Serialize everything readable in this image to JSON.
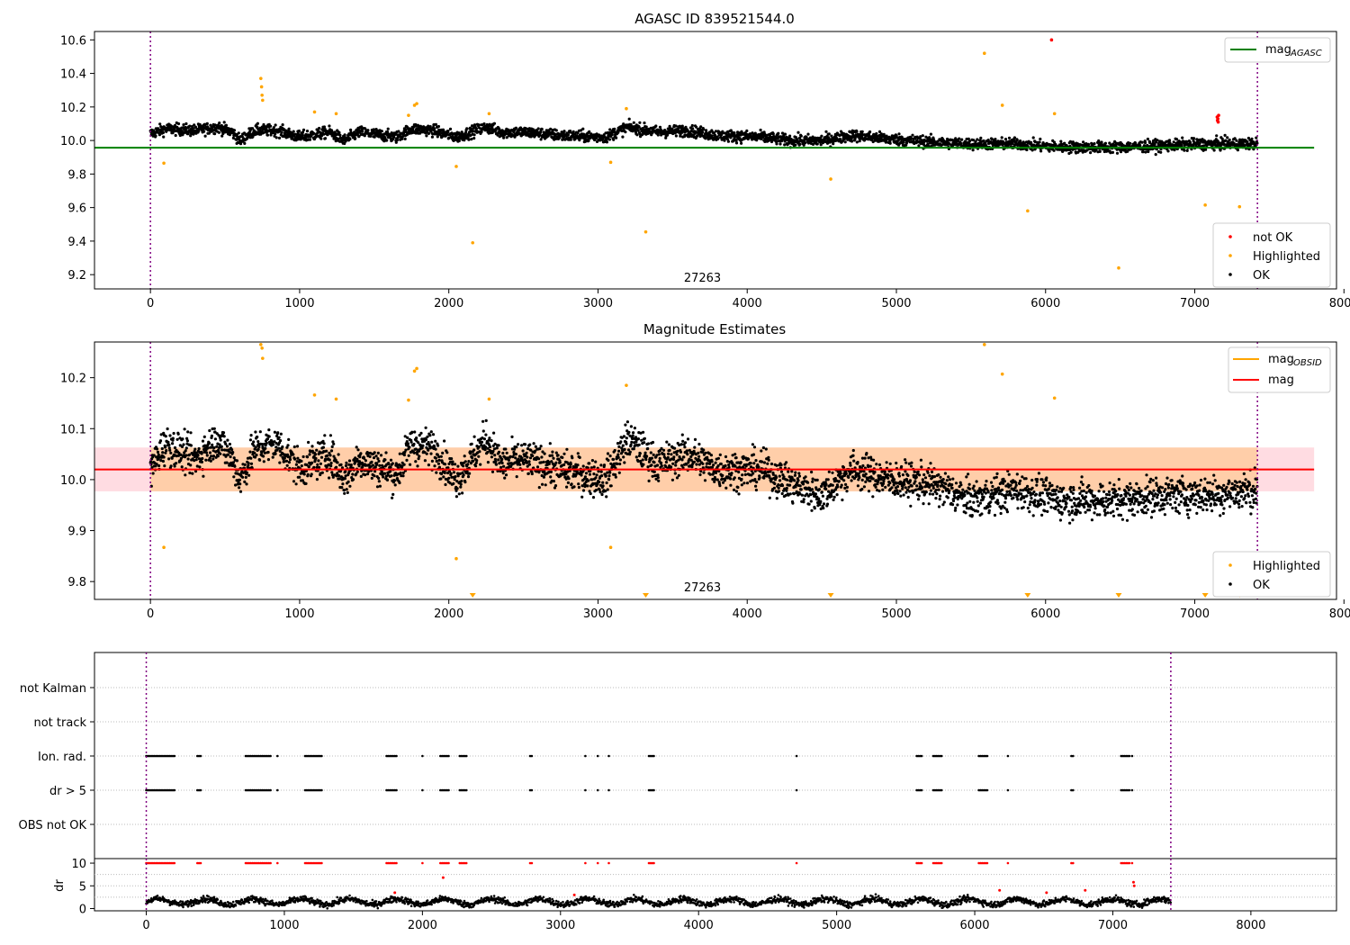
{
  "chart_data": [
    {
      "type": "scatter",
      "title": "AGASC ID 839521544.0",
      "xlim": [
        -375,
        7950
      ],
      "ylim": [
        9.115,
        10.65
      ],
      "xticks": [
        0,
        1000,
        2000,
        3000,
        4000,
        5000,
        6000,
        7000,
        8000
      ],
      "yticks": [
        9.2,
        9.4,
        9.6,
        9.8,
        10.0,
        10.2,
        10.4,
        10.6
      ],
      "ytick_labels": [
        "9.2",
        "9.4",
        "9.6",
        "9.8",
        "10.0",
        "10.2",
        "10.4",
        "10.6"
      ],
      "annotation": {
        "text": "27263",
        "x": 3700,
        "y": 9.13
      },
      "vlines": [
        0,
        7420
      ],
      "lines": [
        {
          "name": "mag_AGASC",
          "y": 9.957,
          "x": [
            -375,
            7800
          ],
          "color": "#008000"
        }
      ],
      "legend_lines": {
        "label": "mag",
        "sub": "AGASC",
        "position": "upper right"
      },
      "legend_points": {
        "position": "lower right",
        "items": [
          {
            "label": "not OK",
            "color": "#ff0000"
          },
          {
            "label": "Highlighted",
            "color": "#ffa500"
          },
          {
            "label": "OK",
            "color": "#000000"
          }
        ]
      },
      "ok_trend": [
        [
          0,
          10.04
        ],
        [
          100,
          10.07
        ],
        [
          300,
          10.06
        ],
        [
          450,
          10.08
        ],
        [
          550,
          10.05
        ],
        [
          600,
          10.0
        ],
        [
          700,
          10.06
        ],
        [
          850,
          10.06
        ],
        [
          1000,
          10.02
        ],
        [
          1200,
          10.05
        ],
        [
          1300,
          10.0
        ],
        [
          1400,
          10.05
        ],
        [
          1650,
          10.02
        ],
        [
          1750,
          10.07
        ],
        [
          1900,
          10.06
        ],
        [
          2050,
          10.02
        ],
        [
          2250,
          10.08
        ],
        [
          2350,
          10.05
        ],
        [
          2500,
          10.05
        ],
        [
          2750,
          10.03
        ],
        [
          3050,
          10.02
        ],
        [
          3200,
          10.08
        ],
        [
          3400,
          10.05
        ],
        [
          3600,
          10.06
        ],
        [
          3800,
          10.03
        ],
        [
          4100,
          10.02
        ],
        [
          4300,
          10.0
        ],
        [
          4500,
          10.0
        ],
        [
          4700,
          10.03
        ],
        [
          4950,
          10.01
        ],
        [
          5250,
          9.99
        ],
        [
          5500,
          9.98
        ],
        [
          5800,
          9.98
        ],
        [
          6100,
          9.96
        ],
        [
          6500,
          9.96
        ],
        [
          6800,
          9.97
        ],
        [
          7100,
          9.98
        ],
        [
          7420,
          9.98
        ]
      ],
      "highlighted": [
        [
          90,
          9.865
        ],
        [
          740,
          10.37
        ],
        [
          745,
          10.32
        ],
        [
          748,
          10.27
        ],
        [
          752,
          10.24
        ],
        [
          1100,
          10.17
        ],
        [
          1245,
          10.16
        ],
        [
          1730,
          10.15
        ],
        [
          1770,
          10.21
        ],
        [
          1785,
          10.22
        ],
        [
          2050,
          9.845
        ],
        [
          2160,
          9.39
        ],
        [
          2270,
          10.16
        ],
        [
          3085,
          9.87
        ],
        [
          3190,
          10.19
        ],
        [
          3320,
          9.455
        ],
        [
          4560,
          9.77
        ],
        [
          5590,
          10.52
        ],
        [
          5710,
          10.21
        ],
        [
          5880,
          9.58
        ],
        [
          6060,
          10.16
        ],
        [
          6490,
          9.24
        ],
        [
          7070,
          9.615
        ],
        [
          7300,
          9.605
        ]
      ],
      "not_ok": [
        [
          6040,
          10.6
        ],
        [
          7150,
          10.14
        ],
        [
          7152,
          10.12
        ],
        [
          7155,
          10.13
        ],
        [
          7157,
          10.11
        ],
        [
          7160,
          10.15
        ]
      ]
    },
    {
      "type": "scatter",
      "title": "Magnitude Estimates",
      "xlim": [
        -375,
        7950
      ],
      "ylim": [
        9.765,
        10.27
      ],
      "xticks": [
        0,
        1000,
        2000,
        3000,
        4000,
        5000,
        6000,
        7000,
        8000
      ],
      "yticks": [
        9.8,
        9.9,
        10.0,
        10.1,
        10.2
      ],
      "ytick_labels": [
        "9.8",
        "9.9",
        "10.0",
        "10.1",
        "10.2"
      ],
      "annotation": {
        "text": "27263",
        "x": 3700,
        "y": 9.775
      },
      "vlines": [
        0,
        7420
      ],
      "mag": 10.02,
      "mag_band": [
        9.977,
        10.063
      ],
      "legend_lines": {
        "position": "upper right",
        "items": [
          {
            "label": "mag",
            "sub": "OBSID",
            "color": "#ffa500"
          },
          {
            "label": "mag",
            "sub": "",
            "color": "#ff0000"
          }
        ]
      },
      "legend_points": {
        "position": "lower right",
        "items": [
          {
            "label": "Highlighted",
            "color": "#ffa500"
          },
          {
            "label": "OK",
            "color": "#000000"
          }
        ]
      },
      "ok_trend": [
        [
          0,
          10.02
        ],
        [
          100,
          10.07
        ],
        [
          300,
          10.04
        ],
        [
          450,
          10.08
        ],
        [
          550,
          10.04
        ],
        [
          600,
          10.0
        ],
        [
          700,
          10.06
        ],
        [
          850,
          10.07
        ],
        [
          1000,
          10.02
        ],
        [
          1200,
          10.05
        ],
        [
          1300,
          10.0
        ],
        [
          1400,
          10.04
        ],
        [
          1650,
          10.01
        ],
        [
          1750,
          10.07
        ],
        [
          1900,
          10.06
        ],
        [
          2050,
          10.0
        ],
        [
          2250,
          10.08
        ],
        [
          2350,
          10.03
        ],
        [
          2500,
          10.04
        ],
        [
          2750,
          10.02
        ],
        [
          3050,
          10.0
        ],
        [
          3200,
          10.08
        ],
        [
          3400,
          10.03
        ],
        [
          3600,
          10.05
        ],
        [
          3800,
          10.02
        ],
        [
          4100,
          10.02
        ],
        [
          4300,
          9.99
        ],
        [
          4500,
          9.97
        ],
        [
          4700,
          10.02
        ],
        [
          4950,
          10.0
        ],
        [
          5250,
          9.99
        ],
        [
          5500,
          9.96
        ],
        [
          5800,
          9.98
        ],
        [
          6100,
          9.96
        ],
        [
          6500,
          9.96
        ],
        [
          6800,
          9.97
        ],
        [
          7100,
          9.97
        ],
        [
          7420,
          9.98
        ]
      ],
      "highlighted": [
        [
          90,
          9.867
        ],
        [
          740,
          10.265
        ],
        [
          748,
          10.258
        ],
        [
          752,
          10.238
        ],
        [
          1100,
          10.166
        ],
        [
          1245,
          10.158
        ],
        [
          1730,
          10.156
        ],
        [
          1770,
          10.213
        ],
        [
          1785,
          10.218
        ],
        [
          2050,
          9.845
        ],
        [
          2270,
          10.158
        ],
        [
          3085,
          9.867
        ],
        [
          3190,
          10.185
        ],
        [
          5710,
          10.207
        ],
        [
          6060,
          10.16
        ],
        [
          5590,
          10.265
        ]
      ],
      "below_range": [
        2160,
        3320,
        4560,
        5880,
        6490,
        7070,
        7300
      ]
    },
    {
      "type": "scatter",
      "title": "",
      "xlim": [
        -375,
        8620
      ],
      "xticks": [
        0,
        1000,
        2000,
        3000,
        4000,
        5000,
        6000,
        7000,
        8000
      ],
      "vlines": [
        0,
        7420
      ],
      "flag_rows": [
        "not Kalman",
        "not track",
        "Ion. rad.",
        "dr > 5",
        "OBS not OK"
      ],
      "flag_segments": [
        [
          0,
          210
        ],
        [
          370,
          400
        ],
        [
          720,
          900
        ],
        [
          950,
          960
        ],
        [
          1150,
          1270
        ],
        [
          1740,
          1820
        ],
        [
          2000,
          2010
        ],
        [
          2130,
          2200
        ],
        [
          2270,
          2320
        ],
        [
          2780,
          2800
        ],
        [
          3180,
          3185
        ],
        [
          3270,
          3275
        ],
        [
          3350,
          3355
        ],
        [
          3640,
          3680
        ],
        [
          4710,
          4715
        ],
        [
          5580,
          5620
        ],
        [
          5700,
          5770
        ],
        [
          6030,
          6090
        ],
        [
          6240,
          6250
        ],
        [
          6700,
          6720
        ],
        [
          7060,
          7120
        ],
        [
          7140,
          7145
        ]
      ],
      "dr": {
        "ylabel": "dr",
        "ylim": [
          -0.5,
          11
        ],
        "yticks": [
          0,
          5,
          10
        ],
        "ytick_labels": [
          "0",
          "5",
          "10"
        ],
        "cap": 10,
        "spikes": [
          [
            2150,
            6.8
          ],
          [
            6180,
            4.0
          ],
          [
            7150,
            5.8
          ],
          [
            7155,
            5.0
          ],
          [
            6520,
            3.5
          ],
          [
            6800,
            4.0
          ],
          [
            1800,
            3.5
          ],
          [
            3100,
            3.0
          ]
        ]
      }
    }
  ]
}
